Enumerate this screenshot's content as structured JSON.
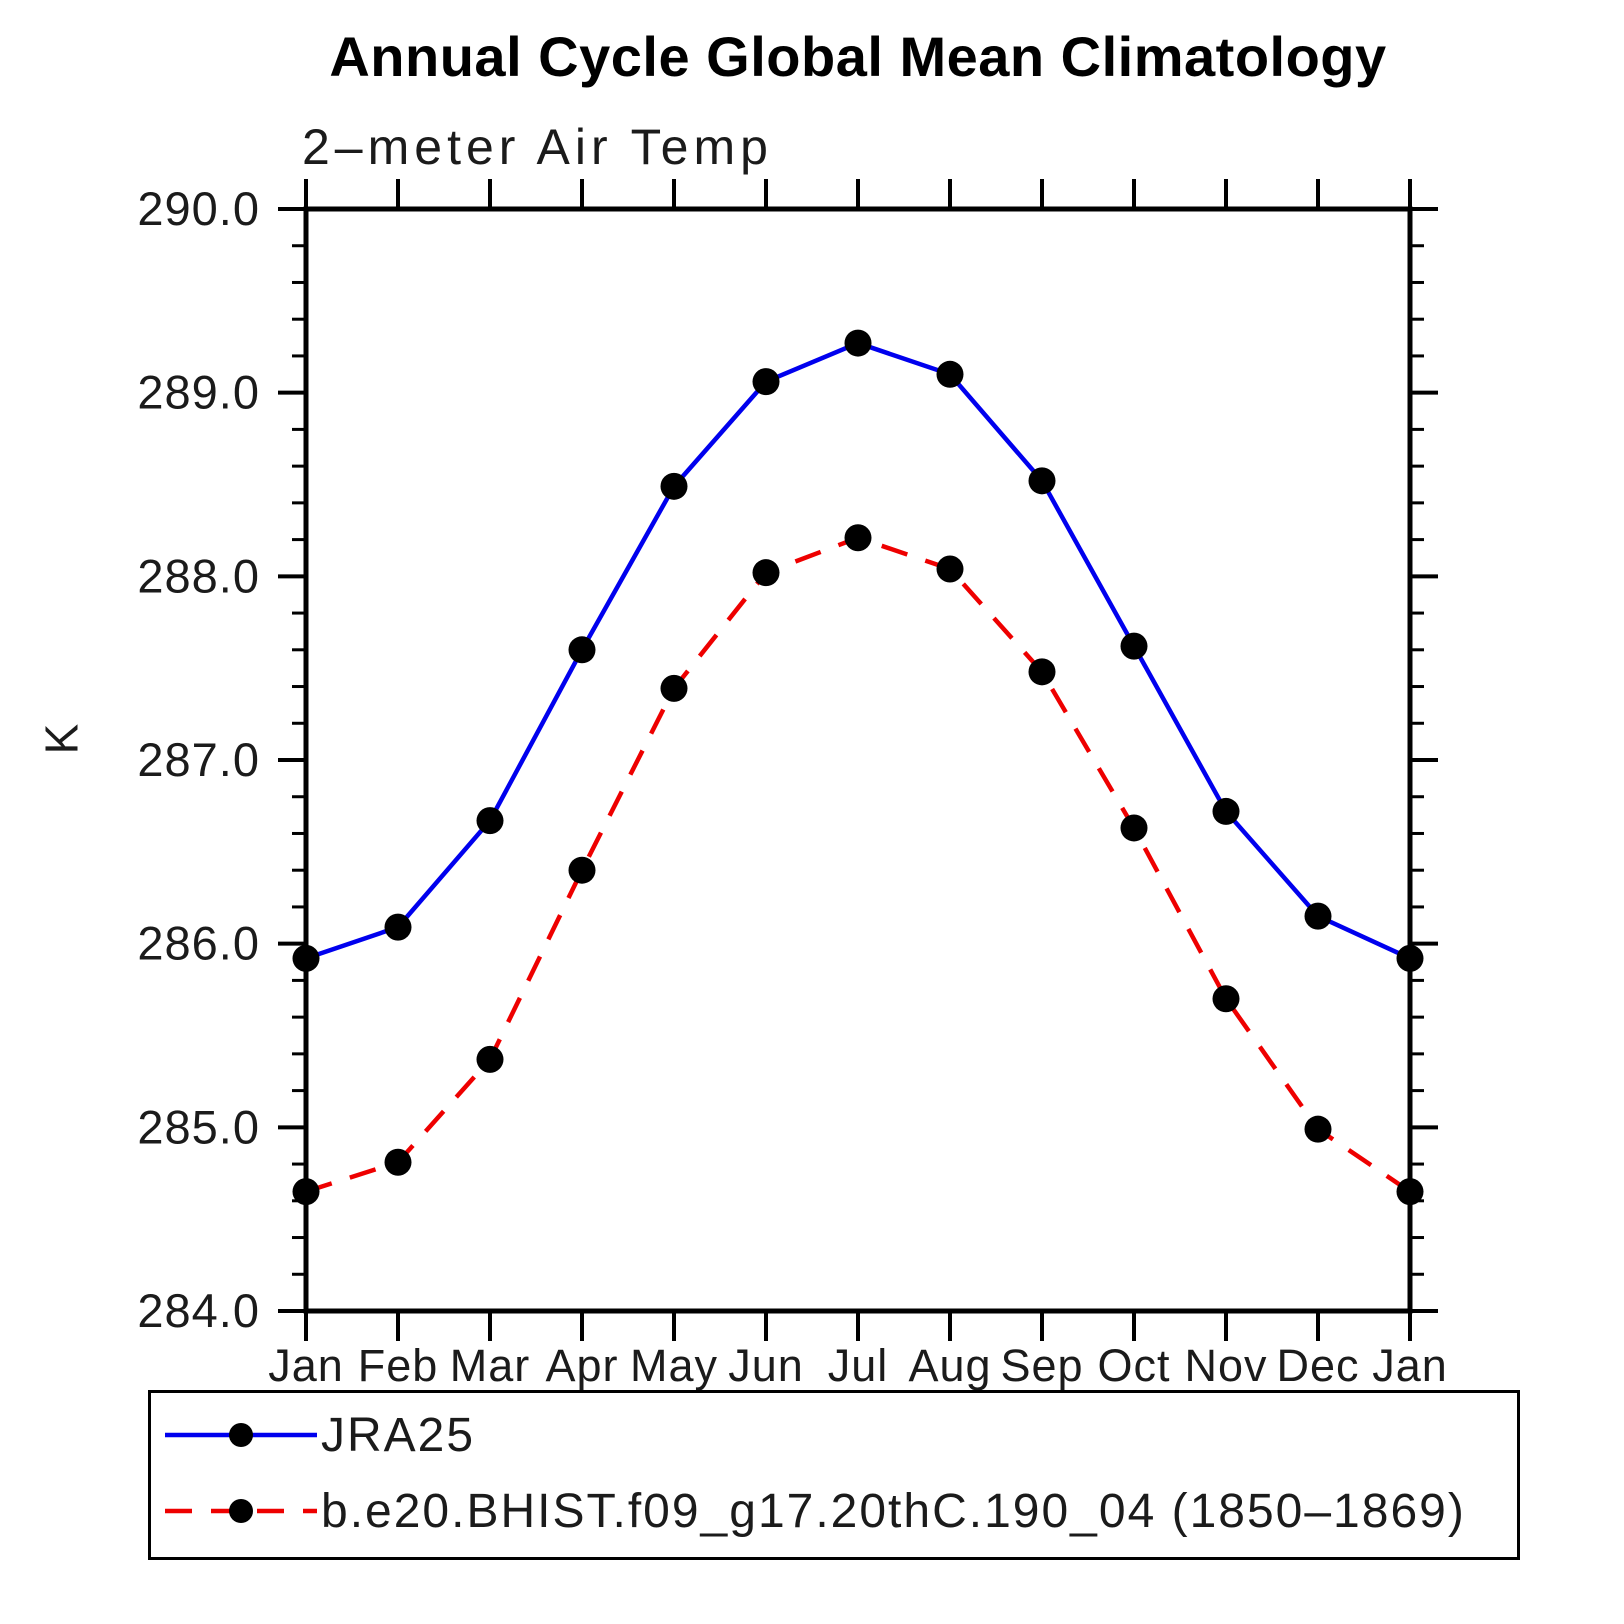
{
  "chart_data": {
    "type": "line",
    "title": "Annual Cycle Global Mean Climatology",
    "subtitle": "2–meter Air Temp",
    "ylabel": "K",
    "x_categories": [
      "Jan",
      "Feb",
      "Mar",
      "Apr",
      "May",
      "Jun",
      "Jul",
      "Aug",
      "Sep",
      "Oct",
      "Nov",
      "Dec",
      "Jan"
    ],
    "ylim": [
      284.0,
      290.0
    ],
    "ytick_interval": 1.0,
    "yminor_per_major": 5,
    "ytick_labels": [
      "284.0",
      "285.0",
      "286.0",
      "287.0",
      "288.0",
      "289.0",
      "290.0"
    ],
    "grid": "off",
    "legend_position": "bottom",
    "marker": {
      "shape": "filled-circle",
      "color": "#000000"
    },
    "series": [
      {
        "name": "JRA25",
        "color": "#0000ee",
        "style": "solid",
        "values": [
          285.92,
          286.09,
          286.67,
          287.6,
          288.49,
          289.06,
          289.27,
          289.1,
          288.52,
          287.62,
          286.72,
          286.15,
          285.92
        ]
      },
      {
        "name": "b.e20.BHIST.f09_g17.20thC.190_04 (1850–1869)",
        "color": "#ee0000",
        "style": "dashed",
        "values": [
          284.65,
          284.81,
          285.37,
          286.4,
          287.39,
          288.02,
          288.21,
          288.04,
          287.48,
          286.63,
          285.7,
          284.99,
          284.65
        ]
      }
    ]
  }
}
